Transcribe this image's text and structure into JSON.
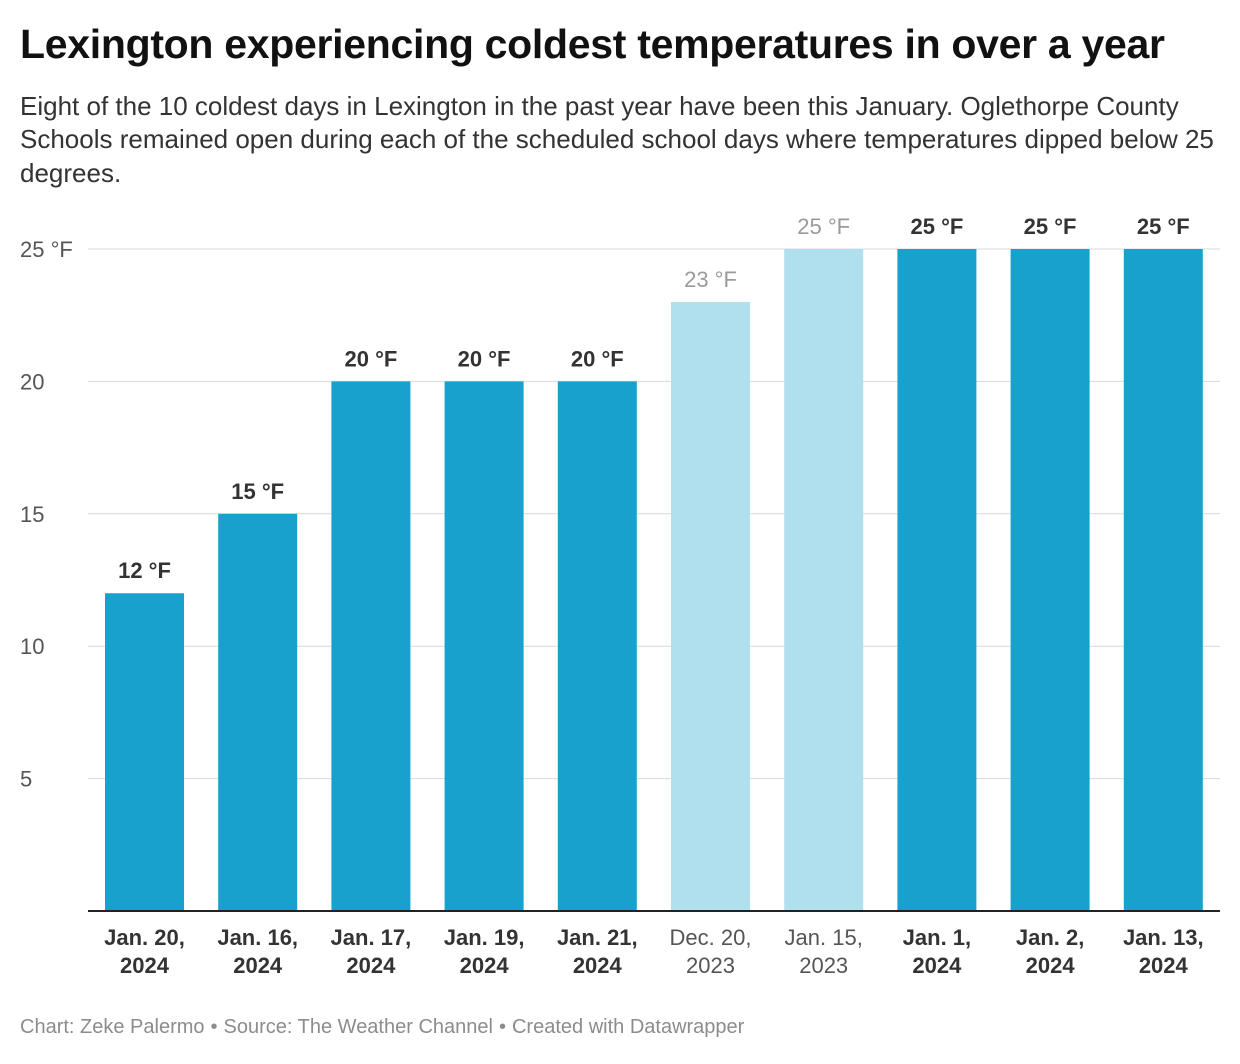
{
  "chart_data": {
    "type": "bar",
    "title": "Lexington experiencing coldest temperatures in over a year",
    "subtitle": "Eight of the 10 coldest days in Lexington in the past year have been this January. Oglethorpe County Schools remained open during each of the scheduled school days where temperatures dipped below 25 degrees.",
    "categories": [
      [
        "Jan. 20,",
        "2024"
      ],
      [
        "Jan. 16,",
        "2024"
      ],
      [
        "Jan. 17,",
        "2024"
      ],
      [
        "Jan. 19,",
        "2024"
      ],
      [
        "Jan. 21,",
        "2024"
      ],
      [
        "Dec. 20,",
        "2023"
      ],
      [
        "Jan. 15,",
        "2023"
      ],
      [
        "Jan. 1,",
        "2024"
      ],
      [
        "Jan. 2,",
        "2024"
      ],
      [
        "Jan. 13,",
        "2024"
      ]
    ],
    "values": [
      12,
      15,
      20,
      20,
      20,
      23,
      25,
      25,
      25,
      25
    ],
    "data_labels": [
      "12 °F",
      "15 °F",
      "20 °F",
      "20 °F",
      "20 °F",
      "23 °F",
      "25 °F",
      "25 °F",
      "25 °F",
      "25 °F"
    ],
    "highlighted": [
      true,
      true,
      true,
      true,
      true,
      false,
      false,
      true,
      true,
      true
    ],
    "ylim": [
      0,
      25
    ],
    "yticks": [
      5,
      10,
      15,
      20,
      25
    ],
    "ytick_labels": [
      "5",
      "10",
      "15",
      "20",
      "25 °F"
    ],
    "xlabel": "",
    "ylabel": "",
    "grid": true,
    "legend": "none",
    "colors": {
      "highlight": "#18a1cd",
      "muted": "#b0dfed",
      "label_strong": "#333333",
      "label_muted": "#9a9a9a",
      "grid": "#d9d9d9",
      "axis": "#222222",
      "tick_text": "#555555"
    }
  },
  "footer": {
    "chart_by": "Chart: Zeke Palermo",
    "source": "Source: The Weather Channel",
    "created": "Created with Datawrapper",
    "separator": "•"
  }
}
